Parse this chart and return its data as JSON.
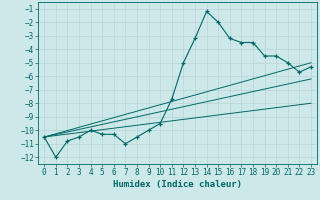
{
  "xlabel": "Humidex (Indice chaleur)",
  "ylabel": "",
  "bg_color": "#cce8e8",
  "grid_color": "#b8d4d4",
  "line_color": "#006868",
  "xlim": [
    -0.5,
    23.5
  ],
  "ylim": [
    -12.5,
    -0.5
  ],
  "yticks": [
    -12,
    -11,
    -10,
    -9,
    -8,
    -7,
    -6,
    -5,
    -4,
    -3,
    -2,
    -1
  ],
  "xticks": [
    0,
    1,
    2,
    3,
    4,
    5,
    6,
    7,
    8,
    9,
    10,
    11,
    12,
    13,
    14,
    15,
    16,
    17,
    18,
    19,
    20,
    21,
    22,
    23
  ],
  "main_x": [
    0,
    1,
    2,
    3,
    4,
    5,
    6,
    7,
    8,
    9,
    10,
    11,
    12,
    13,
    14,
    15,
    16,
    17,
    18,
    19,
    20,
    21,
    22,
    23
  ],
  "main_y": [
    -10.5,
    -12.0,
    -10.8,
    -10.5,
    -10.0,
    -10.3,
    -10.3,
    -11.0,
    -10.5,
    -10.0,
    -9.5,
    -7.7,
    -5.0,
    -3.2,
    -1.2,
    -2.0,
    -3.2,
    -3.5,
    -3.5,
    -4.5,
    -4.5,
    -5.0,
    -5.7,
    -5.3
  ],
  "line1_x": [
    0,
    23
  ],
  "line1_y": [
    -10.5,
    -5.0
  ],
  "line2_x": [
    0,
    23
  ],
  "line2_y": [
    -10.5,
    -6.2
  ],
  "line3_x": [
    0,
    23
  ],
  "line3_y": [
    -10.5,
    -8.0
  ],
  "tick_fontsize": 5.5,
  "label_fontsize": 6.5
}
